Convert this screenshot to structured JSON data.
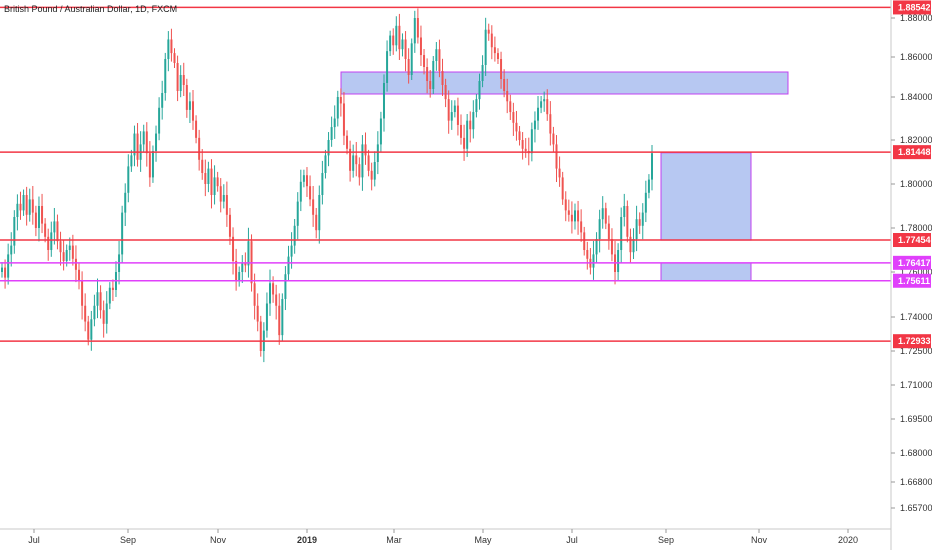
{
  "chart_data": {
    "type": "candlestick",
    "title": "British Pound / Australian Dollar, 1D, FXCM",
    "y_axis": {
      "ticks": [
        "1.88000",
        "1.86000",
        "1.84000",
        "1.82000",
        "1.80000",
        "1.78000",
        "1.76000",
        "1.74000",
        "1.72500",
        "1.71000",
        "1.69500",
        "1.68000",
        "1.66800",
        "1.65700"
      ],
      "tick_values": [
        1.88,
        1.86,
        1.84,
        1.82,
        1.8,
        1.78,
        1.76,
        1.74,
        1.725,
        1.71,
        1.695,
        1.68,
        1.668,
        1.657
      ],
      "range": [
        1.652,
        1.8875
      ]
    },
    "x_axis": {
      "ticks": [
        {
          "label": "Jul",
          "bold": false
        },
        {
          "label": "Sep",
          "bold": false
        },
        {
          "label": "Nov",
          "bold": false
        },
        {
          "label": "2019",
          "bold": true
        },
        {
          "label": "Mar",
          "bold": false
        },
        {
          "label": "May",
          "bold": false
        },
        {
          "label": "Jul",
          "bold": false
        },
        {
          "label": "Sep",
          "bold": false
        },
        {
          "label": "Nov",
          "bold": false
        },
        {
          "label": "2020",
          "bold": false
        }
      ]
    },
    "levels": [
      {
        "label": "1.88542",
        "value": 1.88542,
        "color": "#f23645"
      },
      {
        "label": "1.81448",
        "value": 1.81448,
        "color": "#f23645"
      },
      {
        "label": "1.77454",
        "value": 1.77454,
        "color": "#f23645"
      },
      {
        "label": "1.76417",
        "value": 1.76417,
        "color": "#e040fb"
      },
      {
        "label": "1.75611",
        "value": 1.75611,
        "color": "#e040fb"
      },
      {
        "label": "1.72933",
        "value": 1.72933,
        "color": "#f23645"
      }
    ],
    "zones": [
      {
        "name": "supply-zone",
        "top": 1.8525,
        "bottom": 1.8415
      },
      {
        "name": "target-zone",
        "top": 1.8142,
        "bottom": 1.7745
      },
      {
        "name": "demand-zone",
        "top": 1.7641,
        "bottom": 1.7561
      }
    ],
    "colors": {
      "up": "#26a69a",
      "down": "#ef5350",
      "zone": "#b7c8f2",
      "zone_border": "#c040f0",
      "level": "#f23645",
      "magenta": "#e040fb"
    },
    "grid": false,
    "series": [
      {
        "values": [
          1.762,
          1.7575,
          1.768,
          1.772,
          1.785,
          1.791,
          1.788,
          1.795,
          1.786,
          1.793,
          1.787,
          1.78,
          1.79,
          1.782,
          1.776,
          1.77,
          1.778,
          1.783,
          1.774,
          1.769,
          1.765,
          1.77,
          1.772,
          1.766,
          1.761,
          1.756,
          1.745,
          1.738,
          1.73,
          1.739,
          1.745,
          1.751,
          1.743,
          1.737,
          1.746,
          1.753,
          1.752,
          1.76,
          1.768,
          1.787,
          1.796,
          1.808,
          1.813,
          1.823,
          1.811,
          1.818,
          1.824,
          1.814,
          1.803,
          1.815,
          1.823,
          1.835,
          1.842,
          1.859,
          1.869,
          1.862,
          1.857,
          1.843,
          1.851,
          1.846,
          1.834,
          1.838,
          1.829,
          1.821,
          1.811,
          1.805,
          1.8,
          1.807,
          1.795,
          1.803,
          1.799,
          1.792,
          1.795,
          1.786,
          1.776,
          1.765,
          1.756,
          1.76,
          1.764,
          1.763,
          1.774,
          1.755,
          1.745,
          1.738,
          1.725,
          1.734,
          1.746,
          1.755,
          1.75,
          1.745,
          1.732,
          1.748,
          1.759,
          1.767,
          1.772,
          1.781,
          1.792,
          1.801,
          1.804,
          1.799,
          1.793,
          1.786,
          1.779,
          1.795,
          1.805,
          1.813,
          1.82,
          1.826,
          1.83,
          1.84,
          1.837,
          1.822,
          1.816,
          1.806,
          1.813,
          1.809,
          1.803,
          1.818,
          1.813,
          1.806,
          1.802,
          1.81,
          1.818,
          1.83,
          1.847,
          1.863,
          1.871,
          1.866,
          1.876,
          1.864,
          1.869,
          1.859,
          1.851,
          1.867,
          1.88,
          1.87,
          1.861,
          1.855,
          1.848,
          1.844,
          1.858,
          1.864,
          1.853,
          1.846,
          1.839,
          1.829,
          1.833,
          1.836,
          1.827,
          1.821,
          1.816,
          1.829,
          1.825,
          1.833,
          1.839,
          1.848,
          1.856,
          1.874,
          1.872,
          1.865,
          1.862,
          1.859,
          1.849,
          1.843,
          1.838,
          1.833,
          1.828,
          1.824,
          1.82,
          1.816,
          1.815,
          1.814,
          1.825,
          1.829,
          1.835,
          1.838,
          1.839,
          1.832,
          1.823,
          1.818,
          1.807,
          1.803,
          1.793,
          1.788,
          1.786,
          1.783,
          1.788,
          1.783,
          1.778,
          1.77,
          1.766,
          1.762,
          1.768,
          1.775,
          1.784,
          1.789,
          1.782,
          1.775,
          1.768,
          1.76,
          1.77,
          1.785,
          1.79,
          1.776,
          1.769,
          1.775,
          1.784,
          1.781,
          1.787,
          1.796,
          1.802,
          1.814
        ]
      }
    ]
  }
}
